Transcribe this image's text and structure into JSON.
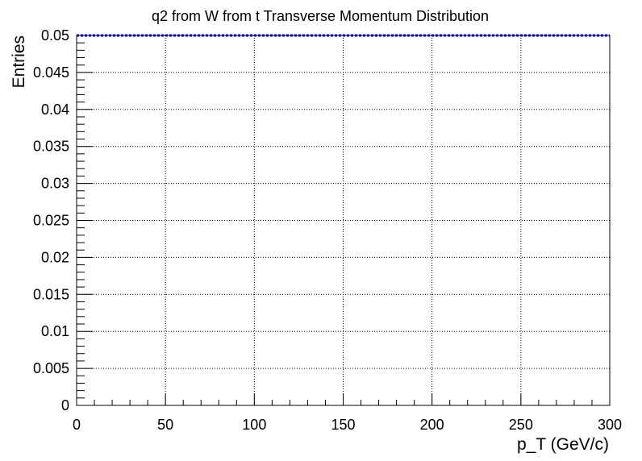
{
  "chart_data": {
    "type": "line",
    "title": "q2 from W from t Transverse Momentum Distribution",
    "xlabel": "p_T (GeV/c)",
    "ylabel": "Entries",
    "xlim": [
      0,
      300
    ],
    "ylim": [
      0,
      0.05
    ],
    "x_ticks": [
      "0",
      "50",
      "100",
      "150",
      "200",
      "250",
      "300"
    ],
    "y_ticks": [
      "0",
      "0.005",
      "0.01",
      "0.015",
      "0.02",
      "0.025",
      "0.03",
      "0.035",
      "0.04",
      "0.045",
      "0.05"
    ],
    "grid": true,
    "series": [
      {
        "x": [
          0,
          300
        ],
        "y": [
          0.05,
          0.05
        ],
        "color": "#0000cc",
        "style": "dotted"
      }
    ]
  }
}
